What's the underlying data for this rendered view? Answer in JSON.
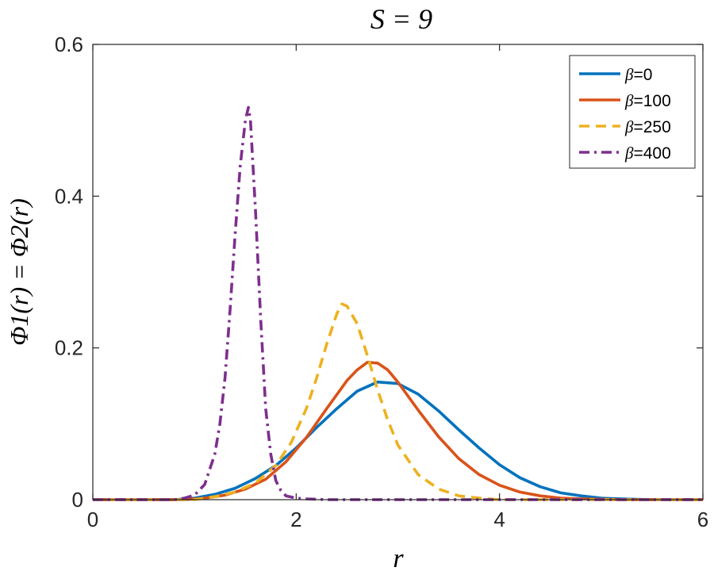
{
  "chart_data": {
    "type": "line",
    "title": "S = 9",
    "xlabel": "r",
    "ylabel": "Φ1(r) = Φ2(r)",
    "xlim": [
      0,
      6
    ],
    "ylim": [
      0,
      0.6
    ],
    "xticks": [
      0,
      2,
      4,
      6
    ],
    "xtick_labels": [
      "0",
      "2",
      "4",
      "6"
    ],
    "yticks": [
      0,
      0.2,
      0.4,
      0.6
    ],
    "ytick_labels": [
      "0",
      "0.2",
      "0.4",
      "0.6"
    ],
    "grid": false,
    "legend_position": "top-right",
    "series": [
      {
        "name": "β=0",
        "color": "#0072BD",
        "dash": "solid",
        "x": [
          0,
          0.8,
          1.0,
          1.2,
          1.4,
          1.6,
          1.8,
          2.0,
          2.2,
          2.4,
          2.6,
          2.8,
          3.0,
          3.2,
          3.4,
          3.6,
          3.8,
          4.0,
          4.2,
          4.4,
          4.6,
          4.8,
          5.0,
          5.2,
          5.5,
          6.0
        ],
        "y": [
          0,
          0.0,
          0.002,
          0.007,
          0.015,
          0.028,
          0.045,
          0.068,
          0.095,
          0.12,
          0.143,
          0.155,
          0.153,
          0.139,
          0.117,
          0.092,
          0.068,
          0.046,
          0.029,
          0.017,
          0.009,
          0.005,
          0.002,
          0.001,
          0.0,
          0
        ]
      },
      {
        "name": "β=100",
        "color": "#D95319",
        "dash": "solid",
        "x": [
          0,
          0.9,
          1.1,
          1.3,
          1.5,
          1.7,
          1.9,
          2.1,
          2.3,
          2.5,
          2.6,
          2.7,
          2.8,
          2.9,
          3.0,
          3.2,
          3.4,
          3.6,
          3.8,
          4.0,
          4.2,
          4.4,
          4.6,
          4.8,
          5.2,
          6.0
        ],
        "y": [
          0,
          0.0,
          0.002,
          0.006,
          0.014,
          0.027,
          0.05,
          0.082,
          0.12,
          0.157,
          0.171,
          0.181,
          0.18,
          0.171,
          0.155,
          0.118,
          0.083,
          0.054,
          0.033,
          0.019,
          0.01,
          0.005,
          0.002,
          0.001,
          0.0,
          0
        ]
      },
      {
        "name": "β=250",
        "color": "#EDB120",
        "dash": "dashed",
        "x": [
          0,
          1.0,
          1.2,
          1.4,
          1.6,
          1.8,
          1.95,
          2.1,
          2.2,
          2.3,
          2.4,
          2.45,
          2.5,
          2.6,
          2.7,
          2.8,
          2.9,
          3.0,
          3.2,
          3.4,
          3.6,
          3.8,
          4.0,
          4.5,
          6.0
        ],
        "y": [
          0,
          0.0,
          0.004,
          0.01,
          0.022,
          0.045,
          0.075,
          0.12,
          0.16,
          0.205,
          0.245,
          0.258,
          0.255,
          0.232,
          0.19,
          0.145,
          0.105,
          0.072,
          0.033,
          0.014,
          0.005,
          0.002,
          0.0,
          0.0,
          0
        ]
      },
      {
        "name": "β=400",
        "color": "#7E2F8E",
        "dash": "dashdot",
        "x": [
          0,
          0.8,
          0.9,
          1.0,
          1.1,
          1.2,
          1.25,
          1.3,
          1.35,
          1.4,
          1.45,
          1.5,
          1.53,
          1.55,
          1.6,
          1.65,
          1.7,
          1.75,
          1.8,
          1.85,
          1.9,
          2.0,
          2.1,
          2.3,
          6.0
        ],
        "y": [
          0,
          0.0,
          0.002,
          0.006,
          0.02,
          0.06,
          0.1,
          0.16,
          0.25,
          0.35,
          0.44,
          0.5,
          0.517,
          0.5,
          0.38,
          0.24,
          0.12,
          0.06,
          0.025,
          0.012,
          0.005,
          0.002,
          0.001,
          0.0,
          0
        ]
      }
    ]
  }
}
